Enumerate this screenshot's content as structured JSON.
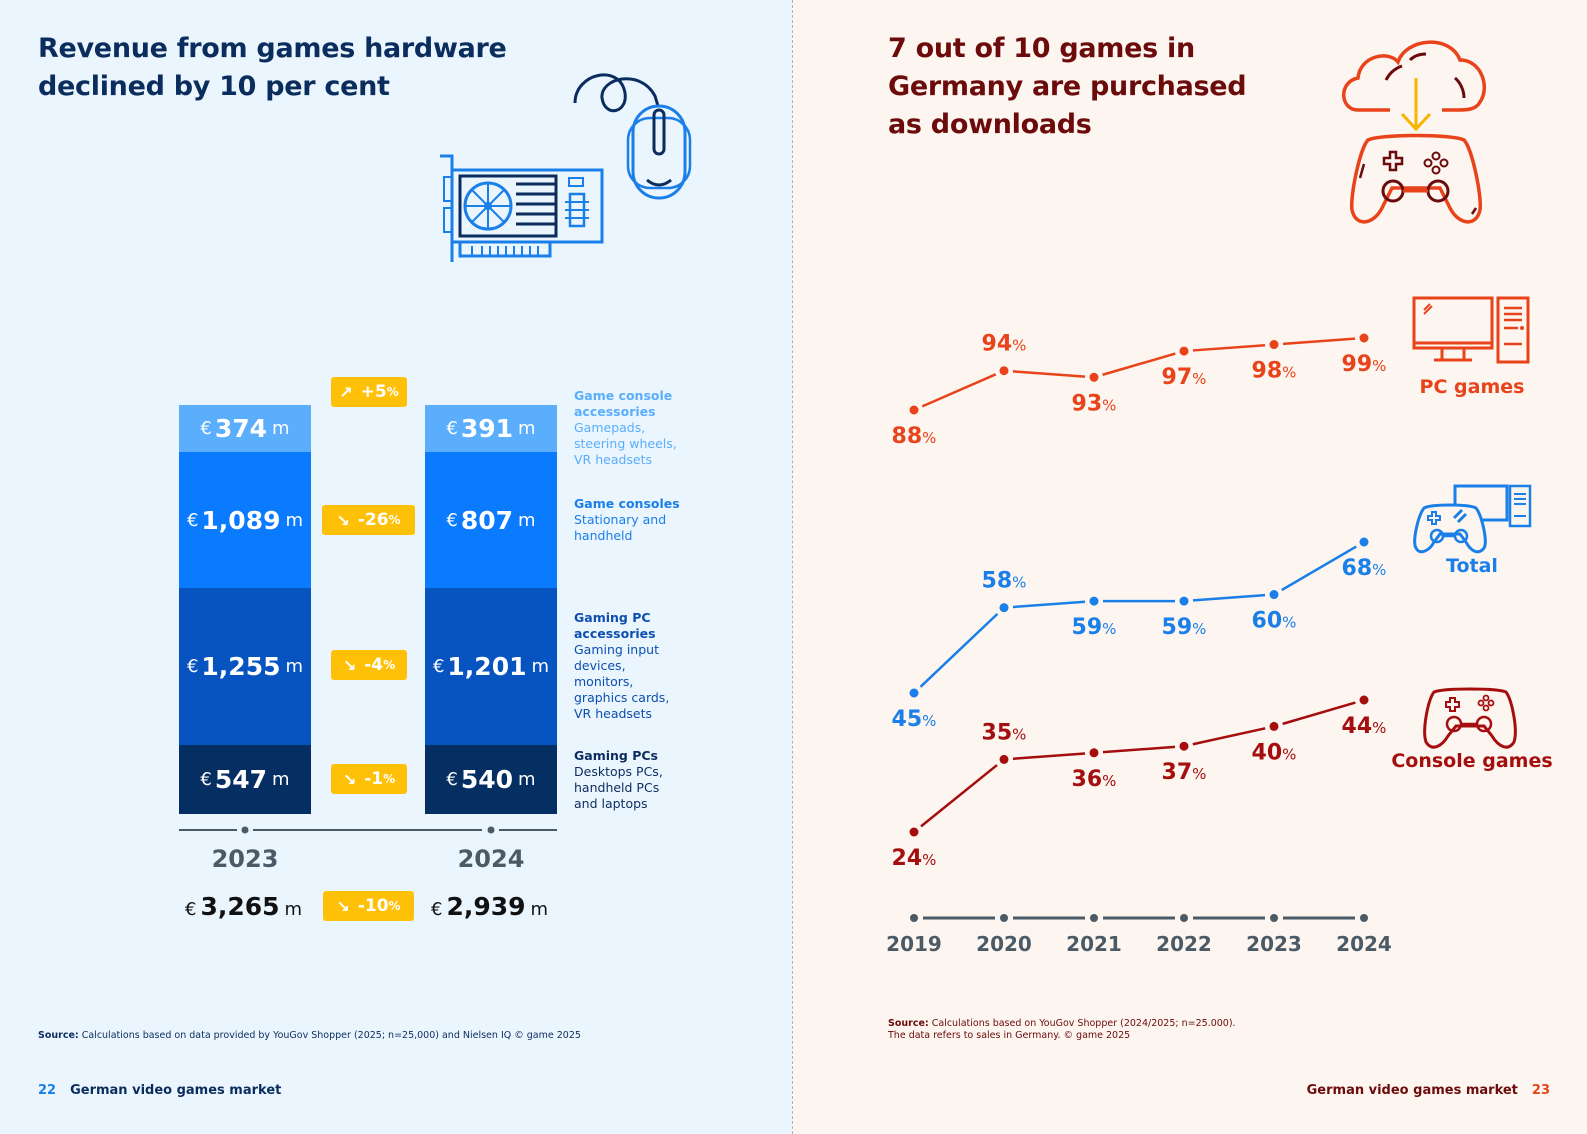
{
  "left_page": {
    "title": "Revenue from games hardware\ndeclined by 10 per cent",
    "currency_symbol": "€",
    "unit": "m",
    "years": [
      "2023",
      "2024"
    ],
    "segments": [
      {
        "key": "console_acc",
        "label": "Game console accessories",
        "desc": "Gamepads, steering wheels, VR headsets",
        "color": "#5aaefc",
        "legend_color": "#5aaefc",
        "values": [
          "374",
          "391"
        ],
        "change": "+5",
        "direction": "up"
      },
      {
        "key": "consoles",
        "label": "Game consoles",
        "desc": "Stationary and handheld",
        "color": "#0a7bff",
        "legend_color": "#1a7fe8",
        "values": [
          "1,089",
          "807"
        ],
        "change": "-26",
        "direction": "down"
      },
      {
        "key": "pc_acc",
        "label": "Gaming PC accessories",
        "desc": "Gaming input devices, monitors, graphics cards, VR headsets",
        "color": "#0754c0",
        "legend_color": "#0d4fb0",
        "values": [
          "1,255",
          "1,201"
        ],
        "change": "-4",
        "direction": "down"
      },
      {
        "key": "pcs",
        "label": "Gaming PCs",
        "desc": "Desktops PCs, handheld PCs and laptops",
        "color": "#052e62",
        "legend_color": "#0b2d5e",
        "values": [
          "547",
          "540"
        ],
        "change": "-1",
        "direction": "down"
      }
    ],
    "totals": [
      "3,265",
      "2,939"
    ],
    "total_change": "-10",
    "percent_sign": "%",
    "arrow_up": "↗",
    "arrow_down": "↘",
    "source_label": "Source:",
    "source_text": " Calculations based on data provided by YouGov Shopper (2025; n=25,000) and Nielsen IQ © game 2025",
    "page_number": "22",
    "footer_text": "German video games market"
  },
  "right_page": {
    "title": "7 out of 10 games in\nGermany are purchased\nas downloads",
    "source_label": "Source:",
    "source_text_line1": " Calculations based on YouGov Shopper (2024/2025; n=25.000).",
    "source_text_line2": "The data refers to sales in Germany. © game 2025",
    "page_number": "23",
    "footer_text": "German video games market"
  },
  "chart_data": [
    {
      "type": "bar",
      "stacked": true,
      "title": "Revenue from games hardware declined by 10 per cent",
      "categories": [
        "2023",
        "2024"
      ],
      "unit": "€ million",
      "series": [
        {
          "name": "Gaming PCs",
          "values": [
            547,
            540
          ]
        },
        {
          "name": "Gaming PC accessories",
          "values": [
            1255,
            1201
          ]
        },
        {
          "name": "Game consoles",
          "values": [
            1089,
            807
          ]
        },
        {
          "name": "Game console accessories",
          "values": [
            374,
            391
          ]
        }
      ],
      "totals": [
        3265,
        2939
      ],
      "changes_percent": {
        "Game console accessories": 5,
        "Game consoles": -26,
        "Gaming PC accessories": -4,
        "Gaming PCs": -1,
        "Total": -10
      }
    },
    {
      "type": "line",
      "title": "7 out of 10 games in Germany are purchased as downloads",
      "x": [
        "2019",
        "2020",
        "2021",
        "2022",
        "2023",
        "2024"
      ],
      "series": [
        {
          "name": "PC games",
          "color": "#e8431a",
          "values": [
            88,
            94,
            93,
            97,
            98,
            99
          ]
        },
        {
          "name": "Total",
          "color": "#1a7fe8",
          "values": [
            45,
            58,
            59,
            59,
            60,
            68
          ]
        },
        {
          "name": "Console games",
          "color": "#a40e0e",
          "values": [
            24,
            35,
            36,
            37,
            40,
            44
          ]
        }
      ],
      "unit": "%",
      "grid": false
    }
  ]
}
